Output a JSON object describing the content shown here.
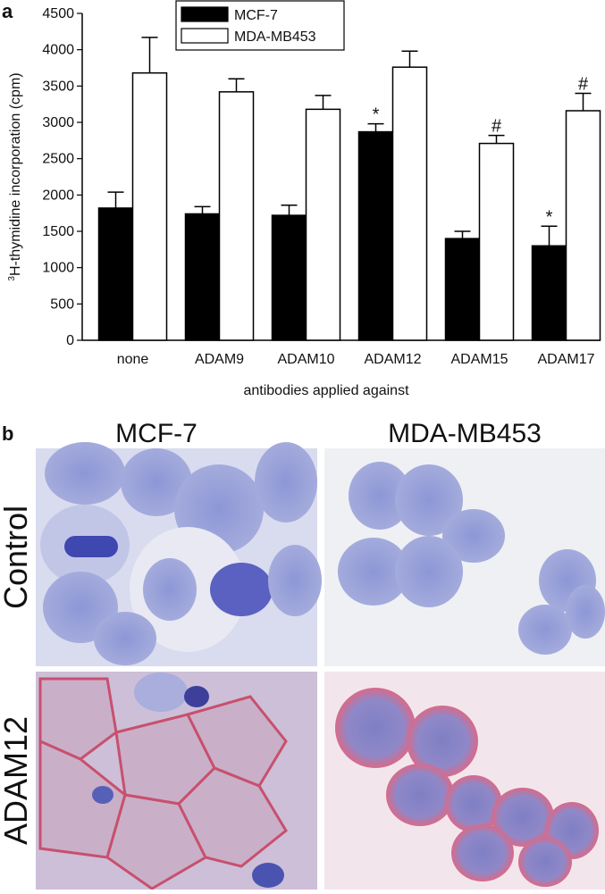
{
  "chart_data": {
    "type": "bar",
    "panel_label": "a",
    "ylabel_superscript": "3",
    "ylabel": "H-thymidine incorporation (cpm)",
    "xlabel": "antibodies applied against",
    "categories": [
      "none",
      "ADAM9",
      "ADAM10",
      "ADAM12",
      "ADAM15",
      "ADAM17"
    ],
    "series": [
      {
        "name": "MCF-7",
        "color": "#000000",
        "values": [
          1820,
          1740,
          1720,
          2870,
          1400,
          1300
        ],
        "errors": [
          220,
          100,
          140,
          110,
          100,
          270
        ],
        "markers": [
          null,
          null,
          null,
          "*",
          null,
          "*"
        ]
      },
      {
        "name": "MDA-MB453",
        "color": "#ffffff",
        "values": [
          3680,
          3420,
          3180,
          3760,
          2710,
          3160
        ],
        "errors": [
          490,
          180,
          190,
          220,
          110,
          240
        ],
        "markers": [
          null,
          null,
          null,
          null,
          "#",
          "#"
        ]
      }
    ],
    "ylim": [
      0,
      4500
    ],
    "yticks": [
      0,
      500,
      1000,
      1500,
      2000,
      2500,
      3000,
      3500,
      4000,
      4500
    ],
    "legend": "top-center"
  },
  "panel_b": {
    "panel_label": "b",
    "columns": [
      "MCF-7",
      "MDA-MB453"
    ],
    "rows": [
      "Control",
      "ADAM12"
    ]
  }
}
